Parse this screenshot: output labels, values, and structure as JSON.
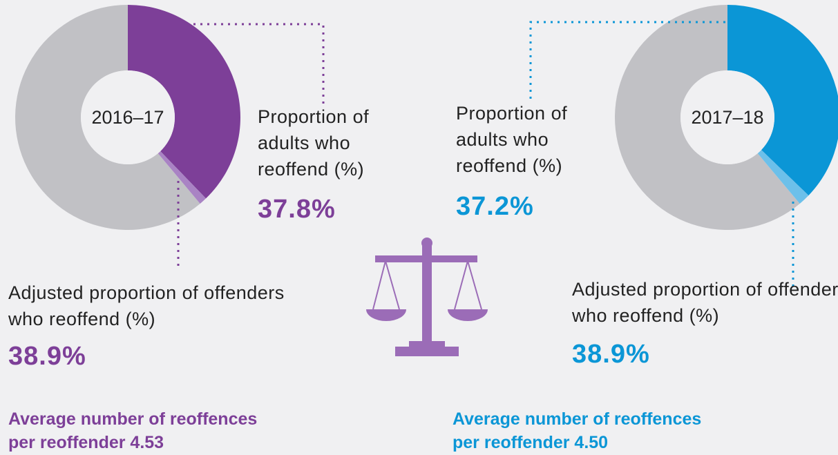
{
  "chart_data": [
    {
      "type": "donut",
      "center_label": "2016–17",
      "color": "#7d3f98",
      "adjusted_color": "#a983c4",
      "rest_color": "#c1c1c5",
      "labels": [
        "Proportion of adults who reoffend (%)",
        "Adjusted proportion of offenders who reoffend (%)"
      ],
      "values": [
        37.8,
        38.9
      ],
      "value_labels": [
        "37.8%",
        "38.9%"
      ],
      "footnote": "Average number of reoffences per reoffender 4.53"
    },
    {
      "type": "donut",
      "center_label": "2017–18",
      "color": "#0b96d6",
      "adjusted_color": "#6cc0ea",
      "rest_color": "#c1c1c5",
      "labels": [
        "Proportion of adults who reoffend (%)",
        "Adjusted proportion of offenders who reoffend (%)"
      ],
      "values": [
        37.2,
        38.9
      ],
      "value_labels": [
        "37.2%",
        "38.9%"
      ],
      "footnote": "Average number of reoffences per reoffender 4.50"
    }
  ]
}
